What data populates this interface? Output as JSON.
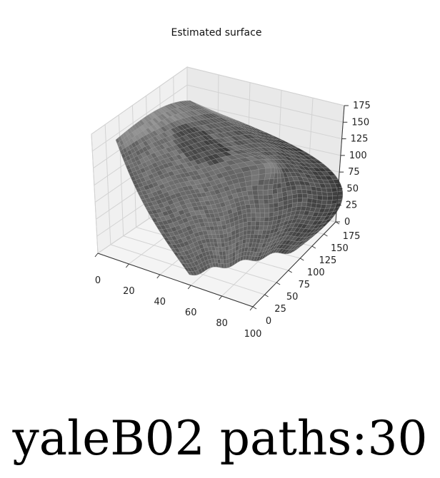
{
  "chart_data": {
    "type": "surface3d",
    "title": "Estimated surface",
    "x_ticks": [
      "0",
      "20",
      "40",
      "60",
      "80",
      "100"
    ],
    "y_ticks": [
      "0",
      "25",
      "50",
      "75",
      "100",
      "125",
      "150",
      "175"
    ],
    "z_ticks": [
      "0",
      "25",
      "50",
      "75",
      "100",
      "125",
      "150",
      "175"
    ],
    "xlim": [
      0,
      100
    ],
    "ylim": [
      0,
      175
    ],
    "zlim": [
      0,
      175
    ],
    "grid": true,
    "surface_color": "#555555",
    "pane_color": "#f2f2f2"
  },
  "caption": "yaleB02 paths:30"
}
